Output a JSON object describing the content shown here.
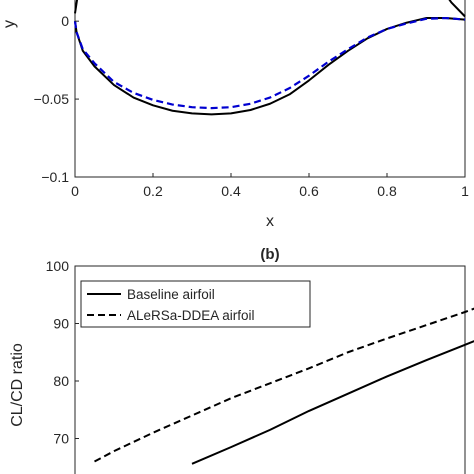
{
  "chart_data": [
    {
      "panel": "a",
      "type": "line",
      "title": "",
      "xlabel": "x",
      "ylabel": "y",
      "xlim": [
        0,
        1
      ],
      "ylim": [
        -0.1,
        0.02
      ],
      "xticks": [
        0,
        0.2,
        0.4,
        0.6,
        0.8,
        1
      ],
      "xtick_labels": [
        "0",
        "0.2",
        "0.4",
        "0.6",
        "0.8",
        "1"
      ],
      "yticks": [
        -0.1,
        -0.05,
        0
      ],
      "ytick_labels": [
        "-0.1",
        "-0.05",
        "0"
      ],
      "grid": false,
      "series": [
        {
          "color": "#000000",
          "style": "solid",
          "points": [
            [
              0,
              0
            ],
            [
              0.004,
              -0.007
            ],
            [
              0.02,
              -0.019
            ],
            [
              0.05,
              -0.029
            ],
            [
              0.1,
              -0.041
            ],
            [
              0.15,
              -0.049
            ],
            [
              0.2,
              -0.054
            ],
            [
              0.25,
              -0.0575
            ],
            [
              0.3,
              -0.0592
            ],
            [
              0.35,
              -0.0598
            ],
            [
              0.4,
              -0.0592
            ],
            [
              0.45,
              -0.057
            ],
            [
              0.5,
              -0.053
            ],
            [
              0.55,
              -0.047
            ],
            [
              0.6,
              -0.038
            ],
            [
              0.65,
              -0.028
            ],
            [
              0.7,
              -0.019
            ],
            [
              0.75,
              -0.011
            ],
            [
              0.8,
              -0.005
            ],
            [
              0.85,
              -0.001
            ],
            [
              0.9,
              0.002
            ],
            [
              0.95,
              0.002
            ],
            [
              1.0,
              0.001
            ]
          ]
        },
        {
          "color": "#0000d0",
          "style": "dashed",
          "points": [
            [
              0,
              0
            ],
            [
              0.004,
              -0.007
            ],
            [
              0.02,
              -0.018
            ],
            [
              0.05,
              -0.027
            ],
            [
              0.1,
              -0.039
            ],
            [
              0.15,
              -0.046
            ],
            [
              0.2,
              -0.0505
            ],
            [
              0.25,
              -0.0535
            ],
            [
              0.3,
              -0.0552
            ],
            [
              0.35,
              -0.0558
            ],
            [
              0.4,
              -0.0552
            ],
            [
              0.45,
              -0.053
            ],
            [
              0.5,
              -0.049
            ],
            [
              0.55,
              -0.043
            ],
            [
              0.6,
              -0.035
            ],
            [
              0.65,
              -0.026
            ],
            [
              0.7,
              -0.018
            ],
            [
              0.75,
              -0.0105
            ],
            [
              0.8,
              -0.005
            ],
            [
              0.85,
              -0.0015
            ],
            [
              0.9,
              0.0015
            ],
            [
              0.95,
              0.002
            ],
            [
              1.0,
              0.001
            ]
          ]
        },
        {
          "color": "#000000",
          "style": "solid",
          "points": [
            [
              0.0,
              0.005
            ],
            [
              0.006,
              0.015
            ],
            [
              0.012,
              0.021
            ]
          ]
        },
        {
          "color": "#000000",
          "style": "solid",
          "points": [
            [
              0.94,
              0.021
            ],
            [
              0.965,
              0.012
            ],
            [
              1.0,
              0.003
            ]
          ]
        }
      ]
    },
    {
      "panel": "b",
      "type": "line",
      "title": "(b)",
      "xlabel": "",
      "ylabel": "CL/CD ratio",
      "ylim": [
        60,
        100
      ],
      "xlim": [
        0,
        1
      ],
      "yticks": [
        70,
        80,
        90,
        100
      ],
      "ytick_labels": [
        "70",
        "80",
        "90",
        "100"
      ],
      "grid": false,
      "legend_position": "top-left",
      "series": [
        {
          "name": "Baseline airfoil",
          "color": "#000000",
          "style": "solid",
          "points": [
            [
              0.3,
              65.6
            ],
            [
              0.4,
              68.5
            ],
            [
              0.5,
              71.5
            ],
            [
              0.6,
              74.8
            ],
            [
              0.7,
              77.8
            ],
            [
              0.8,
              80.8
            ],
            [
              0.9,
              83.6
            ],
            [
              1.0,
              86.3
            ],
            [
              1.1,
              89.0
            ]
          ]
        },
        {
          "name": "ALeRSa-DDEA airfoil",
          "color": "#000000",
          "style": "dashed",
          "points": [
            [
              0.05,
              66.0
            ],
            [
              0.1,
              67.8
            ],
            [
              0.2,
              71.0
            ],
            [
              0.3,
              74.0
            ],
            [
              0.4,
              77.0
            ],
            [
              0.5,
              79.6
            ],
            [
              0.6,
              82.2
            ],
            [
              0.7,
              85.0
            ],
            [
              0.8,
              87.4
            ],
            [
              0.9,
              89.7
            ],
            [
              1.0,
              92.0
            ],
            [
              1.1,
              94.5
            ]
          ]
        }
      ]
    }
  ]
}
